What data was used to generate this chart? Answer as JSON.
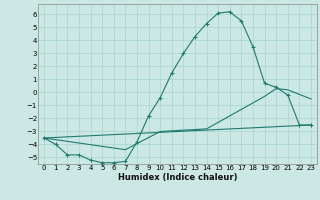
{
  "xlabel": "Humidex (Indice chaleur)",
  "xlim": [
    -0.5,
    23.5
  ],
  "ylim": [
    -5.5,
    6.8
  ],
  "yticks": [
    -5,
    -4,
    -3,
    -2,
    -1,
    0,
    1,
    2,
    3,
    4,
    5,
    6
  ],
  "xticks": [
    0,
    1,
    2,
    3,
    4,
    5,
    6,
    7,
    8,
    9,
    10,
    11,
    12,
    13,
    14,
    15,
    16,
    17,
    18,
    19,
    20,
    21,
    22,
    23
  ],
  "line_color": "#1e7a6e",
  "bg_color": "#cce8e4",
  "grid_color": "#a8d4cf",
  "line1_x": [
    0,
    1,
    2,
    3,
    4,
    5,
    6,
    7,
    8,
    9,
    10,
    11,
    12,
    13,
    14,
    15,
    16,
    17,
    18,
    19,
    20,
    21,
    22,
    23
  ],
  "line1_y": [
    -3.5,
    -4.0,
    -4.8,
    -4.8,
    -5.2,
    -5.4,
    -5.4,
    -5.3,
    -3.8,
    -1.8,
    -0.4,
    1.5,
    3.0,
    4.3,
    5.3,
    6.1,
    6.2,
    5.5,
    3.5,
    0.7,
    0.4,
    -0.2,
    -2.5,
    -2.5
  ],
  "line2_x": [
    0,
    23
  ],
  "line2_y": [
    -3.5,
    -2.5
  ],
  "line3_x": [
    0,
    7,
    10,
    14,
    19,
    20,
    21,
    23
  ],
  "line3_y": [
    -3.5,
    -4.4,
    -3.0,
    -2.8,
    -0.3,
    0.3,
    0.2,
    -0.5
  ]
}
